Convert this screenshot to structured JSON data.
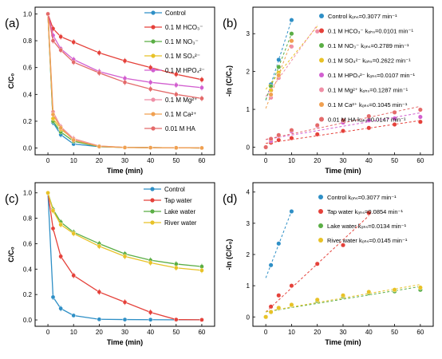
{
  "chart_data": [
    {
      "panel": "(a)",
      "type": "line",
      "xlabel": "Time (min)",
      "ylabel": "C/C₀",
      "xlim": [
        -5,
        65
      ],
      "ylim": [
        -0.05,
        1.05
      ],
      "xticks": [
        0,
        10,
        20,
        30,
        40,
        50,
        60
      ],
      "yticks": [
        0.0,
        0.2,
        0.4,
        0.6,
        0.8,
        1.0
      ],
      "grid": false,
      "legend": "top-right and middle-right",
      "x": [
        0,
        2,
        5,
        10,
        20,
        30,
        40,
        50,
        60
      ],
      "series": [
        {
          "name": "Control",
          "color": "#2e8fc6",
          "legend_group": 1,
          "values": [
            1.0,
            0.19,
            0.1,
            0.03,
            0.01,
            0.005,
            0.003,
            0.002,
            0.001
          ]
        },
        {
          "name": "0.1 M HCO₃⁻",
          "color": "#e5413a",
          "legend_group": 1,
          "values": [
            1.0,
            0.89,
            0.83,
            0.79,
            0.71,
            0.65,
            0.6,
            0.55,
            0.51
          ]
        },
        {
          "name": "0.1 M NO₃⁻",
          "color": "#5aae45",
          "legend_group": 1,
          "values": [
            1.0,
            0.2,
            0.12,
            0.05,
            0.01,
            0.005,
            0.003,
            0.002,
            0.001
          ]
        },
        {
          "name": "0.1 M SO₄²⁻",
          "color": "#e8c227",
          "legend_group": 1,
          "values": [
            1.0,
            0.22,
            0.14,
            0.07,
            0.015,
            0.005,
            0.003,
            0.002,
            0.001
          ]
        },
        {
          "name": "0.1 M HPO₄²⁻",
          "color": "#d25fd0",
          "legend_group": 1,
          "values": [
            1.0,
            0.84,
            0.74,
            0.66,
            0.57,
            0.52,
            0.49,
            0.47,
            0.45
          ]
        },
        {
          "name": "0.1 M Mg²⁺",
          "color": "#ef8fa6",
          "legend_group": 2,
          "values": [
            1.0,
            0.27,
            0.16,
            0.07,
            0.015,
            0.005,
            0.003,
            0.002,
            0.001
          ]
        },
        {
          "name": "0.1 M Ca²⁺",
          "color": "#f0a050",
          "legend_group": 2,
          "values": [
            1.0,
            0.25,
            0.15,
            0.06,
            0.012,
            0.004,
            0.003,
            0.002,
            0.001
          ]
        },
        {
          "name": "0.01 M HA",
          "color": "#e46a6a",
          "legend_group": 2,
          "values": [
            1.0,
            0.8,
            0.73,
            0.64,
            0.56,
            0.49,
            0.44,
            0.4,
            0.37
          ]
        }
      ]
    },
    {
      "panel": "(b)",
      "type": "scatter",
      "xlabel": "Time (min)",
      "ylabel": "-ln (C/C₀)",
      "xlim": [
        -5,
        65
      ],
      "ylim": [
        -0.2,
        3.7
      ],
      "xticks": [
        0,
        10,
        20,
        30,
        40,
        50,
        60
      ],
      "yticks": [
        0,
        1,
        2,
        3
      ],
      "grid": false,
      "legend": "right",
      "fit_lines": "dashed",
      "series": [
        {
          "name": "Control kₒₕₛ=0.3077 min⁻¹",
          "color": "#2e8fc6",
          "x": [
            2,
            5,
            10
          ],
          "y": [
            1.66,
            2.31,
            3.36
          ]
        },
        {
          "name": "0.1 M HCO₃⁻ kₒₕₛ=0.0101 min⁻¹",
          "color": "#e5413a",
          "x": [
            0,
            2,
            5,
            10,
            20,
            30,
            40,
            50,
            60
          ],
          "y": [
            0.0,
            0.12,
            0.19,
            0.24,
            0.34,
            0.43,
            0.51,
            0.6,
            0.67
          ]
        },
        {
          "name": "0.1 M NO₃⁻ kₒₕₛ=0.2789 min⁻¹",
          "color": "#5aae45",
          "x": [
            2,
            5,
            10
          ],
          "y": [
            1.61,
            2.12,
            3.0
          ]
        },
        {
          "name": "0.1 M SO₄²⁻ kₒₕₛ=0.2622 min⁻¹",
          "color": "#e8c227",
          "x": [
            2,
            5,
            10,
            20
          ],
          "y": [
            1.51,
            1.97,
            2.66,
            3.06
          ]
        },
        {
          "name": "0.1 M HPO₄²⁻ kₒₕₛ=0.0107 min⁻¹",
          "color": "#d25fd0",
          "x": [
            0,
            2,
            5,
            10,
            20,
            30,
            40,
            50,
            60
          ],
          "y": [
            0.0,
            0.17,
            0.3,
            0.42,
            0.56,
            0.65,
            0.71,
            0.76,
            0.8
          ]
        },
        {
          "name": "0.1 M Mg²⁺ kₒₕₛ=0.1287 min⁻¹",
          "color": "#ef8fa6",
          "x": [
            2,
            5,
            10,
            20
          ],
          "y": [
            1.31,
            1.83,
            2.66,
            3.06
          ]
        },
        {
          "name": "0.1 M Ca²⁺ kₒₕₛ=0.1045 min⁻¹",
          "color": "#f0a050",
          "x": [
            2,
            5,
            10
          ],
          "y": [
            1.39,
            1.9,
            2.81
          ]
        },
        {
          "name": "0.01 M HA kₒₕₛ=0.0147 min⁻¹",
          "color": "#e46a6a",
          "x": [
            0,
            2,
            5,
            10,
            20,
            30,
            40,
            50,
            60
          ],
          "y": [
            0.0,
            0.22,
            0.32,
            0.45,
            0.58,
            0.71,
            0.82,
            0.92,
            0.99
          ]
        }
      ]
    },
    {
      "panel": "(c)",
      "type": "line",
      "xlabel": "Time (min)",
      "ylabel": "C/C₀",
      "xlim": [
        -5,
        65
      ],
      "ylim": [
        -0.05,
        1.08
      ],
      "xticks": [
        0,
        10,
        20,
        30,
        40,
        50,
        60
      ],
      "yticks": [
        0.0,
        0.2,
        0.4,
        0.6,
        0.8,
        1.0
      ],
      "grid": false,
      "legend": "top-right",
      "x": [
        0,
        2,
        5,
        10,
        20,
        30,
        40,
        50,
        60
      ],
      "series": [
        {
          "name": "Control",
          "color": "#2e8fc6",
          "values": [
            1.0,
            0.18,
            0.09,
            0.035,
            0.005,
            0.003,
            0.002,
            0.001,
            0.001
          ]
        },
        {
          "name": "Tap water",
          "color": "#e5413a",
          "values": [
            1.0,
            0.72,
            0.5,
            0.35,
            0.22,
            0.14,
            0.06,
            0.003,
            0.001
          ]
        },
        {
          "name": "Lake water",
          "color": "#5aae45",
          "values": [
            1.0,
            0.87,
            0.77,
            0.69,
            0.6,
            0.52,
            0.47,
            0.44,
            0.42
          ]
        },
        {
          "name": "River water",
          "color": "#e8c227",
          "values": [
            1.0,
            0.86,
            0.75,
            0.68,
            0.58,
            0.5,
            0.45,
            0.41,
            0.39
          ]
        }
      ]
    },
    {
      "panel": "(d)",
      "type": "scatter",
      "xlabel": "Time (min)",
      "ylabel": "-ln (C/C₀)",
      "xlim": [
        -5,
        65
      ],
      "ylim": [
        -0.3,
        4.3
      ],
      "xticks": [
        0,
        10,
        20,
        30,
        40,
        50,
        60
      ],
      "yticks": [
        0,
        1,
        2,
        3,
        4
      ],
      "grid": false,
      "legend": "top-right",
      "fit_lines": "dashed",
      "series": [
        {
          "name": "Control kₒₕₛ=0.3077 min⁻¹",
          "color": "#2e8fc6",
          "x": [
            2,
            5,
            10
          ],
          "y": [
            1.66,
            2.35,
            3.38
          ]
        },
        {
          "name": "Tap water kₒₕₛ=0.0854 min⁻¹",
          "color": "#e5413a",
          "x": [
            0,
            2,
            5,
            10,
            20,
            30,
            40
          ],
          "y": [
            0.0,
            0.33,
            0.69,
            1.0,
            1.7,
            2.3,
            3.33
          ]
        },
        {
          "name": "Lake water kₒₕₛ=0.0134 min⁻¹",
          "color": "#5aae45",
          "x": [
            0,
            2,
            5,
            10,
            20,
            30,
            40,
            50,
            60
          ],
          "y": [
            0.0,
            0.15,
            0.27,
            0.37,
            0.51,
            0.65,
            0.76,
            0.82,
            0.87
          ]
        },
        {
          "name": "River water kₒₕₛ=0.0145 min⁻¹",
          "color": "#e8c227",
          "x": [
            0,
            2,
            5,
            10,
            20,
            30,
            40,
            50,
            60
          ],
          "y": [
            0.0,
            0.16,
            0.29,
            0.39,
            0.55,
            0.69,
            0.8,
            0.87,
            0.94
          ]
        }
      ]
    }
  ]
}
